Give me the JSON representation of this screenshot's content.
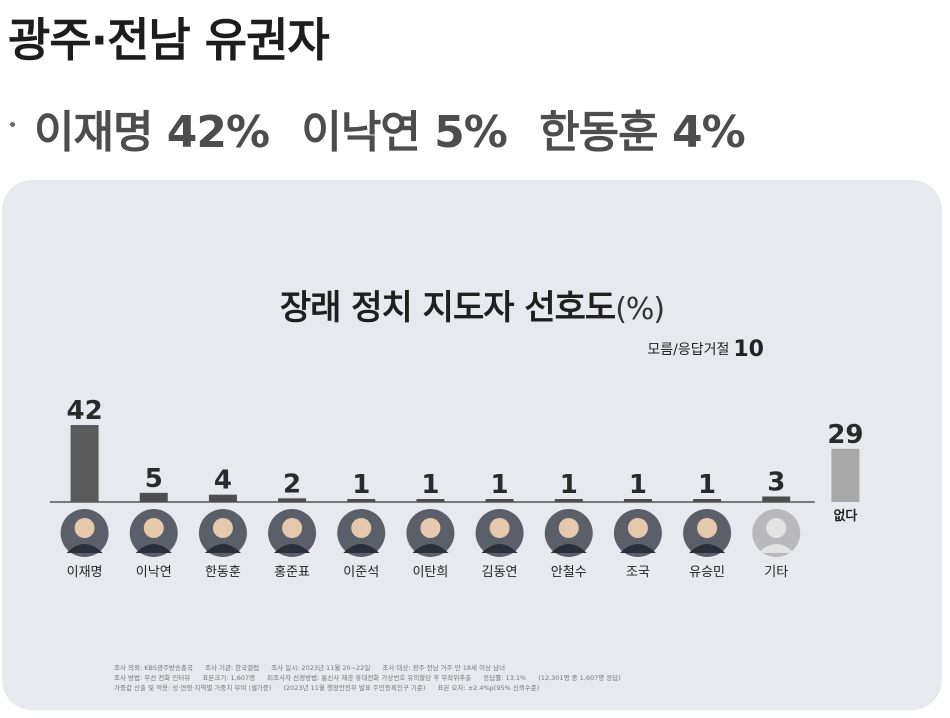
{
  "headline": "광주·전남 유권자",
  "subline": [
    {
      "text": "이재명 42%"
    },
    {
      "text": "이낙연 5%"
    },
    {
      "text": "한동훈 4%"
    }
  ],
  "colors": {
    "card": "#e8e9ef",
    "bar_main": "#5b5b5b",
    "bar_other": "#4e4e4e",
    "bar_none": "#a8a8a8",
    "baseline": "#555555"
  },
  "chart_data": {
    "type": "bar",
    "title": "장래 정치 지도자 선호도",
    "unit": "(%)",
    "note_label": "모름/응답거절",
    "note_value": "10",
    "categories": [
      "이재명",
      "이낙연",
      "한동훈",
      "홍준표",
      "이준석",
      "이탄희",
      "김동연",
      "안철수",
      "조국",
      "유승민",
      "기타",
      "없다"
    ],
    "values": [
      42,
      5,
      4,
      2,
      1,
      1,
      1,
      1,
      1,
      1,
      3,
      29
    ],
    "ylim": [
      0,
      42
    ]
  },
  "footnote": {
    "lines": [
      [
        "조사 의뢰: KBS광주방송총국",
        "조사 기관: 한국갤럽",
        "조사 일시: 2023년 11월 20~22일",
        "조사 대상: 광주·전남 거주 만 18세 이상 남녀"
      ],
      [
        "조사 방법: 무선 전화 인터뷰",
        "표본크기: 1,607명",
        "피조사자 선정방법: 통신사 제공 휴대전화 가상번호 유의할당 후 무작위추출",
        "응답률: 13.1%",
        "(12,301명 중 1,607명 응답)"
      ],
      [
        "가중값 산출 및 적용: 성·연령·지역별 가중치 부여 (셀가중)",
        "(2023년 11월 행정안전부 발표 주민등록인구 기준)",
        "표본 오차: ±2.4%p(95% 신뢰수준)"
      ]
    ]
  }
}
